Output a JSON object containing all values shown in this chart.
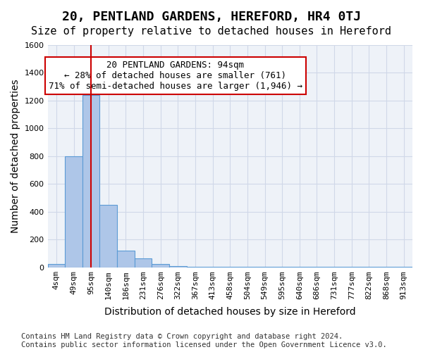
{
  "title": "20, PENTLAND GARDENS, HEREFORD, HR4 0TJ",
  "subtitle": "Size of property relative to detached houses in Hereford",
  "xlabel": "Distribution of detached houses by size in Hereford",
  "ylabel": "Number of detached properties",
  "bar_values": [
    25,
    800,
    1240,
    450,
    120,
    65,
    25,
    10,
    5,
    2,
    1,
    1,
    1,
    1,
    1,
    1,
    1,
    1,
    1,
    1,
    1
  ],
  "categories": [
    "4sqm",
    "49sqm",
    "95sqm",
    "140sqm",
    "186sqm",
    "231sqm",
    "276sqm",
    "322sqm",
    "367sqm",
    "413sqm",
    "458sqm",
    "504sqm",
    "549sqm",
    "595sqm",
    "640sqm",
    "686sqm",
    "731sqm",
    "777sqm",
    "822sqm",
    "868sqm",
    "913sqm"
  ],
  "bar_color": "#aec6e8",
  "bar_edge_color": "#5b9bd5",
  "grid_color": "#d0d8e8",
  "annotation_box_color": "#cc0000",
  "property_line_color": "#cc0000",
  "property_line_x": 2,
  "annotation_text": "20 PENTLAND GARDENS: 94sqm\n← 28% of detached houses are smaller (761)\n71% of semi-detached houses are larger (1,946) →",
  "ylim": [
    0,
    1600
  ],
  "yticks": [
    0,
    200,
    400,
    600,
    800,
    1000,
    1200,
    1400,
    1600
  ],
  "footer_line1": "Contains HM Land Registry data © Crown copyright and database right 2024.",
  "footer_line2": "Contains public sector information licensed under the Open Government Licence v3.0.",
  "title_fontsize": 13,
  "subtitle_fontsize": 11,
  "axis_label_fontsize": 10,
  "tick_fontsize": 8,
  "annotation_fontsize": 9,
  "footer_fontsize": 7.5
}
